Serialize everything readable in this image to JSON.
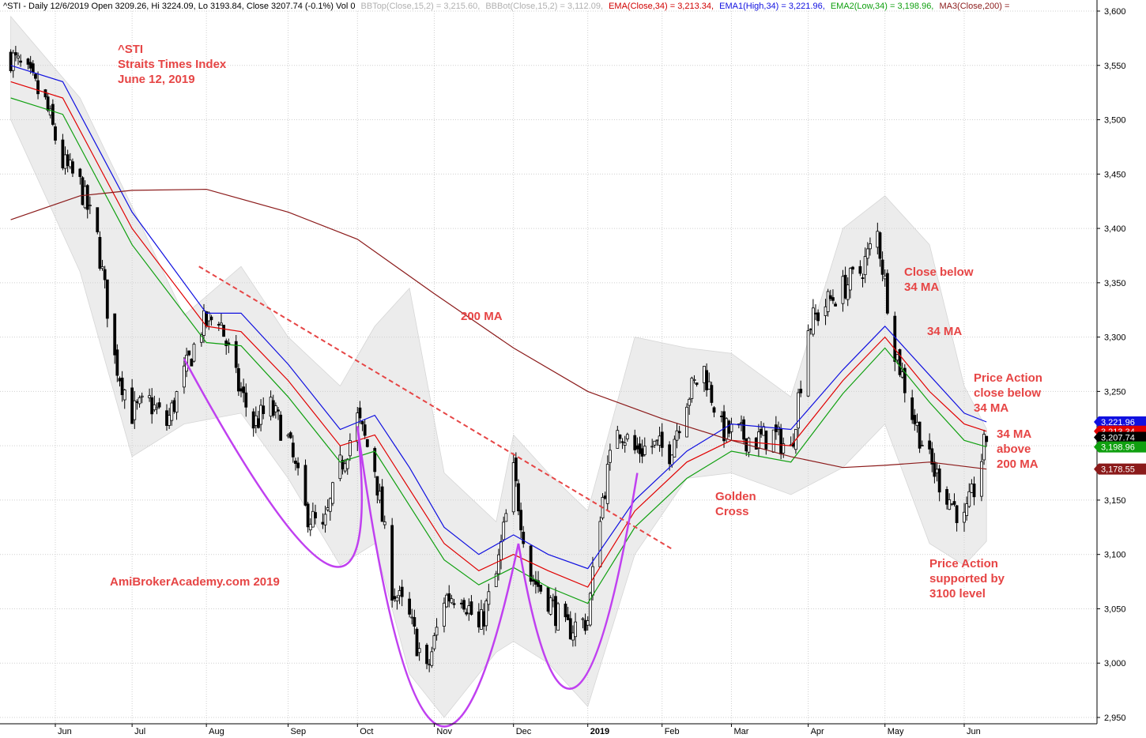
{
  "header": {
    "symbol": "^STI - Daily 12/6/2019 Open 3209.26, Hi 3224.09, Lo 3193.84, Close 3207.74 (-0.1%) Vol 0",
    "bbtop": "BBTop(Close,15,2) = 3,215.60,",
    "bbbot": "BBBot(Close,15,2) = 3,112.09,",
    "ema": "EMA(Close,34) = 3,213.34,",
    "ema1": "EMA1(High,34) = 3,221.96,",
    "ema2": "EMA2(Low,34) = 3,198.96,",
    "ma3": "MA3(Close,200) ="
  },
  "colors": {
    "ema": "#e00000",
    "ema_high": "#1010e0",
    "ema_low": "#10a010",
    "ma200": "#8b1a1a",
    "bands": "#ececec",
    "trendline": "#e64545",
    "arcs": "#c040f0",
    "annotation": "#e64545",
    "bbtop": "#b0b0b0"
  },
  "annotations": {
    "title_1": "^STI",
    "title_2": "Straits Times Index",
    "title_3": "June 12, 2019",
    "ma200_label": "200 MA",
    "watermark": "AmiBrokerAcademy.com  2019",
    "golden_1": "Golden",
    "golden_2": "Cross",
    "close_below_1": "Close below",
    "close_below_2": "34 MA",
    "ma34": "34 MA",
    "pa_close_1": "Price Action",
    "pa_close_2": "close below",
    "pa_close_3": "34 MA",
    "ma34_above_1": "34 MA",
    "ma34_above_2": "above",
    "ma34_above_3": "200 MA",
    "pa_support_1": "Price Action",
    "pa_support_2": "supported by",
    "pa_support_3": "3100 level"
  },
  "chart_data": {
    "type": "candlestick",
    "title": "^STI Straits Times Index June 12, 2019",
    "ylim": [
      2940,
      3600
    ],
    "y_ticks": [
      2950,
      3000,
      3050,
      3100,
      3150,
      3200,
      3250,
      3300,
      3350,
      3400,
      3450,
      3500,
      3550,
      3600
    ],
    "y_tick_labels": [
      "2,950",
      "3,000",
      "3,050",
      "3,100",
      "3,150",
      "3,200",
      "3,250",
      "3,300",
      "3,350",
      "3,400",
      "3,450",
      "3,500",
      "3,550",
      "3,600"
    ],
    "x_ticks": [
      {
        "label": "Jun",
        "date": "2018-06-01"
      },
      {
        "label": "Jul",
        "date": "2018-07-02"
      },
      {
        "label": "Aug",
        "date": "2018-08-01"
      },
      {
        "label": "Sep",
        "date": "2018-09-03"
      },
      {
        "label": "Oct",
        "date": "2018-10-01"
      },
      {
        "label": "Nov",
        "date": "2018-11-01"
      },
      {
        "label": "Dec",
        "date": "2018-12-03"
      },
      {
        "label": "2019",
        "date": "2019-01-02"
      },
      {
        "label": "Feb",
        "date": "2019-02-01"
      },
      {
        "label": "Mar",
        "date": "2019-03-01"
      },
      {
        "label": "Apr",
        "date": "2019-04-01"
      },
      {
        "label": "May",
        "date": "2019-05-02"
      },
      {
        "label": "Jun",
        "date": "2019-06-03"
      }
    ],
    "grid": true,
    "price_close_path": [
      [
        "2018-05-14",
        3558
      ],
      [
        "2018-05-21",
        3540
      ],
      [
        "2018-05-28",
        3515
      ],
      [
        "2018-06-04",
        3460
      ],
      [
        "2018-06-11",
        3440
      ],
      [
        "2018-06-18",
        3390
      ],
      [
        "2018-06-25",
        3280
      ],
      [
        "2018-07-02",
        3230
      ],
      [
        "2018-07-09",
        3240
      ],
      [
        "2018-07-16",
        3220
      ],
      [
        "2018-07-23",
        3265
      ],
      [
        "2018-07-30",
        3310
      ],
      [
        "2018-08-06",
        3320
      ],
      [
        "2018-08-13",
        3260
      ],
      [
        "2018-08-20",
        3220
      ],
      [
        "2018-08-27",
        3235
      ],
      [
        "2018-09-03",
        3205
      ],
      [
        "2018-09-10",
        3140
      ],
      [
        "2018-09-17",
        3120
      ],
      [
        "2018-09-24",
        3180
      ],
      [
        "2018-10-01",
        3225
      ],
      [
        "2018-10-08",
        3180
      ],
      [
        "2018-10-15",
        3070
      ],
      [
        "2018-10-22",
        3040
      ],
      [
        "2018-10-29",
        2990
      ],
      [
        "2018-11-05",
        3060
      ],
      [
        "2018-11-12",
        3065
      ],
      [
        "2018-11-19",
        3030
      ],
      [
        "2018-11-26",
        3080
      ],
      [
        "2018-12-03",
        3175
      ],
      [
        "2018-12-10",
        3080
      ],
      [
        "2018-12-17",
        3060
      ],
      [
        "2018-12-24",
        3030
      ],
      [
        "2019-01-02",
        3040
      ],
      [
        "2019-01-07",
        3140
      ],
      [
        "2019-01-14",
        3220
      ],
      [
        "2019-01-21",
        3195
      ],
      [
        "2019-01-28",
        3200
      ],
      [
        "2019-02-04",
        3195
      ],
      [
        "2019-02-11",
        3245
      ],
      [
        "2019-02-18",
        3270
      ],
      [
        "2019-02-25",
        3215
      ],
      [
        "2019-03-04",
        3210
      ],
      [
        "2019-03-11",
        3205
      ],
      [
        "2019-03-18",
        3210
      ],
      [
        "2019-03-25",
        3195
      ],
      [
        "2019-04-01",
        3310
      ],
      [
        "2019-04-08",
        3330
      ],
      [
        "2019-04-15",
        3345
      ],
      [
        "2019-04-22",
        3360
      ],
      [
        "2019-04-29",
        3395
      ],
      [
        "2019-05-06",
        3290
      ],
      [
        "2019-05-13",
        3230
      ],
      [
        "2019-05-20",
        3185
      ],
      [
        "2019-05-27",
        3155
      ],
      [
        "2019-06-03",
        3130
      ],
      [
        "2019-06-07",
        3160
      ],
      [
        "2019-06-12",
        3207.74
      ]
    ],
    "series": [
      {
        "name": "EMA(Close,34)",
        "color": "#e00000",
        "points": [
          [
            "2018-05-14",
            3535
          ],
          [
            "2018-06-04",
            3520
          ],
          [
            "2018-07-02",
            3400
          ],
          [
            "2018-08-01",
            3310
          ],
          [
            "2018-08-15",
            3305
          ],
          [
            "2018-09-03",
            3260
          ],
          [
            "2018-09-24",
            3200
          ],
          [
            "2018-10-08",
            3210
          ],
          [
            "2018-10-22",
            3160
          ],
          [
            "2018-11-05",
            3110
          ],
          [
            "2018-11-19",
            3085
          ],
          [
            "2018-12-03",
            3100
          ],
          [
            "2018-12-17",
            3085
          ],
          [
            "2019-01-02",
            3070
          ],
          [
            "2019-01-21",
            3140
          ],
          [
            "2019-02-11",
            3185
          ],
          [
            "2019-03-01",
            3205
          ],
          [
            "2019-03-25",
            3200
          ],
          [
            "2019-04-15",
            3260
          ],
          [
            "2019-05-02",
            3300
          ],
          [
            "2019-05-20",
            3250
          ],
          [
            "2019-06-03",
            3220
          ],
          [
            "2019-06-12",
            3213.34
          ]
        ]
      },
      {
        "name": "EMA1(High,34)",
        "color": "#1010e0",
        "points": [
          [
            "2018-05-14",
            3550
          ],
          [
            "2018-06-04",
            3535
          ],
          [
            "2018-07-02",
            3415
          ],
          [
            "2018-08-01",
            3322
          ],
          [
            "2018-08-15",
            3322
          ],
          [
            "2018-09-03",
            3275
          ],
          [
            "2018-09-24",
            3215
          ],
          [
            "2018-10-08",
            3228
          ],
          [
            "2018-10-22",
            3180
          ],
          [
            "2018-11-05",
            3125
          ],
          [
            "2018-11-19",
            3100
          ],
          [
            "2018-12-03",
            3118
          ],
          [
            "2018-12-17",
            3100
          ],
          [
            "2019-01-02",
            3087
          ],
          [
            "2019-01-21",
            3150
          ],
          [
            "2019-02-11",
            3195
          ],
          [
            "2019-03-01",
            3220
          ],
          [
            "2019-03-25",
            3215
          ],
          [
            "2019-04-15",
            3270
          ],
          [
            "2019-05-02",
            3310
          ],
          [
            "2019-05-20",
            3265
          ],
          [
            "2019-06-03",
            3230
          ],
          [
            "2019-06-12",
            3221.96
          ]
        ]
      },
      {
        "name": "EMA2(Low,34)",
        "color": "#10a010",
        "points": [
          [
            "2018-05-14",
            3520
          ],
          [
            "2018-06-04",
            3505
          ],
          [
            "2018-07-02",
            3385
          ],
          [
            "2018-08-01",
            3295
          ],
          [
            "2018-08-15",
            3292
          ],
          [
            "2018-09-03",
            3245
          ],
          [
            "2018-09-24",
            3185
          ],
          [
            "2018-10-08",
            3195
          ],
          [
            "2018-10-22",
            3145
          ],
          [
            "2018-11-05",
            3095
          ],
          [
            "2018-11-19",
            3072
          ],
          [
            "2018-12-03",
            3088
          ],
          [
            "2018-12-17",
            3070
          ],
          [
            "2019-01-02",
            3055
          ],
          [
            "2019-01-21",
            3125
          ],
          [
            "2019-02-11",
            3170
          ],
          [
            "2019-03-01",
            3195
          ],
          [
            "2019-03-25",
            3185
          ],
          [
            "2019-04-15",
            3248
          ],
          [
            "2019-05-02",
            3290
          ],
          [
            "2019-05-20",
            3240
          ],
          [
            "2019-06-03",
            3205
          ],
          [
            "2019-06-12",
            3198.96
          ]
        ]
      },
      {
        "name": "MA3(Close,200)",
        "color": "#8b1a1a",
        "points": [
          [
            "2018-05-14",
            3408
          ],
          [
            "2018-06-11",
            3430
          ],
          [
            "2018-07-02",
            3435
          ],
          [
            "2018-08-01",
            3436
          ],
          [
            "2018-09-03",
            3415
          ],
          [
            "2018-10-01",
            3390
          ],
          [
            "2018-11-01",
            3340
          ],
          [
            "2018-12-03",
            3290
          ],
          [
            "2019-01-02",
            3250
          ],
          [
            "2019-02-01",
            3225
          ],
          [
            "2019-03-01",
            3205
          ],
          [
            "2019-03-25",
            3190
          ],
          [
            "2019-04-15",
            3180
          ],
          [
            "2019-05-02",
            3182
          ],
          [
            "2019-05-20",
            3185
          ],
          [
            "2019-06-12",
            3178.55
          ]
        ]
      },
      {
        "name": "BBTop(Close,15,2)",
        "color": "#b0b0b0",
        "points": [
          [
            "2018-05-14",
            3595
          ],
          [
            "2018-06-11",
            3520
          ],
          [
            "2018-07-02",
            3420
          ],
          [
            "2018-07-23",
            3320
          ],
          [
            "2018-08-15",
            3365
          ],
          [
            "2018-09-03",
            3300
          ],
          [
            "2018-09-24",
            3255
          ],
          [
            "2018-10-08",
            3310
          ],
          [
            "2018-10-22",
            3345
          ],
          [
            "2018-11-05",
            3175
          ],
          [
            "2018-11-26",
            3130
          ],
          [
            "2018-12-03",
            3210
          ],
          [
            "2018-12-17",
            3175
          ],
          [
            "2019-01-02",
            3140
          ],
          [
            "2019-01-21",
            3300
          ],
          [
            "2019-02-11",
            3290
          ],
          [
            "2019-03-01",
            3285
          ],
          [
            "2019-03-25",
            3245
          ],
          [
            "2019-04-15",
            3400
          ],
          [
            "2019-05-02",
            3430
          ],
          [
            "2019-05-20",
            3385
          ],
          [
            "2019-06-03",
            3255
          ],
          [
            "2019-06-12",
            3215.6
          ]
        ]
      },
      {
        "name": "BBBot(Close,15,2)",
        "color": "#b0b0b0",
        "points": [
          [
            "2018-05-14",
            3500
          ],
          [
            "2018-06-11",
            3360
          ],
          [
            "2018-07-02",
            3190
          ],
          [
            "2018-07-23",
            3220
          ],
          [
            "2018-08-15",
            3230
          ],
          [
            "2018-09-03",
            3170
          ],
          [
            "2018-09-24",
            3090
          ],
          [
            "2018-10-08",
            3110
          ],
          [
            "2018-10-22",
            2990
          ],
          [
            "2018-11-05",
            2950
          ],
          [
            "2018-11-26",
            3010
          ],
          [
            "2018-12-03",
            3020
          ],
          [
            "2018-12-17",
            3000
          ],
          [
            "2019-01-02",
            2960
          ],
          [
            "2019-01-21",
            3100
          ],
          [
            "2019-02-11",
            3170
          ],
          [
            "2019-03-01",
            3175
          ],
          [
            "2019-03-25",
            3155
          ],
          [
            "2019-04-15",
            3180
          ],
          [
            "2019-05-02",
            3220
          ],
          [
            "2019-05-20",
            3110
          ],
          [
            "2019-06-03",
            3090
          ],
          [
            "2019-06-12",
            3112.09
          ]
        ]
      }
    ],
    "trendline": {
      "points": [
        [
          "2018-07-29",
          3365
        ],
        [
          "2019-02-05",
          3105
        ]
      ]
    },
    "rounded_bottoms": [
      {
        "from": [
          "2018-07-23",
          3280
        ],
        "bottom": [
          "2018-09-20",
          3090
        ],
        "to": [
          "2018-10-01",
          3218
        ]
      },
      {
        "from": [
          "2018-10-01",
          3218
        ],
        "bottom": [
          "2018-11-01",
          2945
        ],
        "to": [
          "2018-12-05",
          3110
        ]
      },
      {
        "from": [
          "2018-12-05",
          3110
        ],
        "bottom": [
          "2018-12-28",
          2978
        ],
        "to": [
          "2019-01-22",
          3175
        ]
      }
    ],
    "price_badges": [
      {
        "value": 3221.96,
        "label": "3,221.96",
        "color": "#1010e0"
      },
      {
        "value": 3213.34,
        "label": "3,213.34",
        "color": "#e00000"
      },
      {
        "value": 3207.74,
        "label": "3,207.74",
        "color": "#000000"
      },
      {
        "value": 3198.96,
        "label": "3,198.96",
        "color": "#10a010"
      },
      {
        "value": 3178.55,
        "label": "3,178.55",
        "color": "#8b1a1a"
      }
    ]
  }
}
